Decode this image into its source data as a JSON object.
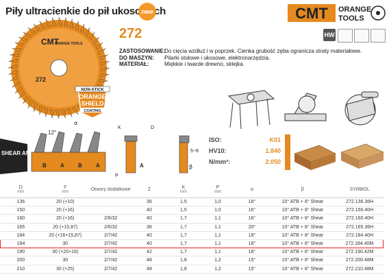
{
  "header": {
    "title": "Piły ultracienkie do pił ukosowych",
    "new_badge": "new"
  },
  "brand": {
    "name": "CMT",
    "line1": "ORANGE",
    "line2": "TOOLS",
    "color": "#e58a1f"
  },
  "product": {
    "code": "272",
    "specs": [
      {
        "label": "ZASTOSOWANIE:",
        "value": "Do cięcia wzdłuż i w poprzek. Cienka grubość zęba ogranicza straty materiałowe."
      },
      {
        "label": "DO MASZYN:",
        "value": "Pilarki stołowe i ukosowe, elektronarzędzia."
      },
      {
        "label": "MATERIAŁ:",
        "value": "Miękkie i twarde drewno, sklejka."
      }
    ],
    "hw_badge": "HW"
  },
  "blade": {
    "brand": "CMT",
    "sub": "ORANGE TOOLS",
    "center_text": "272",
    "nonstick": "NON-STICK",
    "orange": "ORANGE",
    "shield": "SHIELD",
    "coating": "COATING"
  },
  "diagram": {
    "shear_angle": "SHEAR ANGLE",
    "angle_12": "12°",
    "alpha": "α",
    "beta": "β",
    "labels_b": "B",
    "labels_a": "A",
    "label_k": "K",
    "label_p": "P",
    "label_d": "D",
    "range": "5~8"
  },
  "iso": {
    "rows": [
      {
        "label": "ISO:",
        "value": "K01"
      },
      {
        "label": "HV10:",
        "value": "1.840"
      },
      {
        "label": "N/mm²:",
        "value": "2.050"
      }
    ]
  },
  "table": {
    "headers": [
      {
        "label": "D",
        "unit": "mm"
      },
      {
        "label": "F",
        "unit": "mm"
      },
      {
        "label": "Otwory dodatkowe",
        "unit": ""
      },
      {
        "label": "Z",
        "unit": ""
      },
      {
        "label": "K",
        "unit": "mm"
      },
      {
        "label": "P",
        "unit": "mm"
      },
      {
        "label": "α",
        "unit": ""
      },
      {
        "label": "β",
        "unit": ""
      },
      {
        "label": "SYMBOL",
        "unit": ""
      }
    ],
    "rows": [
      [
        "136",
        "20 (+10)",
        "",
        "36",
        "1,5",
        "1,0",
        "18°",
        "10° ATB + 8° Shear",
        "272.136.36H"
      ],
      [
        "150",
        "20 (+16)",
        "",
        "40",
        "1,5",
        "1,0",
        "16°",
        "10° ATB + 8° Shear",
        "272.150.40H"
      ],
      [
        "160",
        "20 (+16)",
        "2/6/32",
        "40",
        "1,7",
        "1,1",
        "16°",
        "10° ATB + 8° Shear",
        "272.160.40H"
      ],
      [
        "165",
        "20 (+15,87)",
        "2/6/32",
        "36",
        "1,7",
        "1,1",
        "20°",
        "10° ATB + 8° Shear",
        "272.165.36H"
      ],
      [
        "184",
        "20 (+16+15,87)",
        "2/7/42",
        "40",
        "1,7",
        "1,1",
        "18°",
        "10° ATB + 8° Shear",
        "272.184.40H"
      ],
      [
        "184",
        "30",
        "2/7/42",
        "40",
        "1,7",
        "1,1",
        "18°",
        "10° ATB + 8° Shear",
        "272.184.40M"
      ],
      [
        "190",
        "30 (+20+16)",
        "2/7/42",
        "42",
        "1,7",
        "1,1",
        "18°",
        "10° ATB + 8° Shear",
        "272.190.42M"
      ],
      [
        "200",
        "30",
        "2/7/42",
        "48",
        "1,8",
        "1,2",
        "15°",
        "10° ATB + 8° Shear",
        "272.200.48M"
      ],
      [
        "210",
        "30 (+25)",
        "2/7/42",
        "48",
        "1,8",
        "1,2",
        "15°",
        "10° ATB + 8° Shear",
        "272.210.48M"
      ]
    ],
    "highlight_row": 5,
    "highlight_color": "#e0262a"
  }
}
